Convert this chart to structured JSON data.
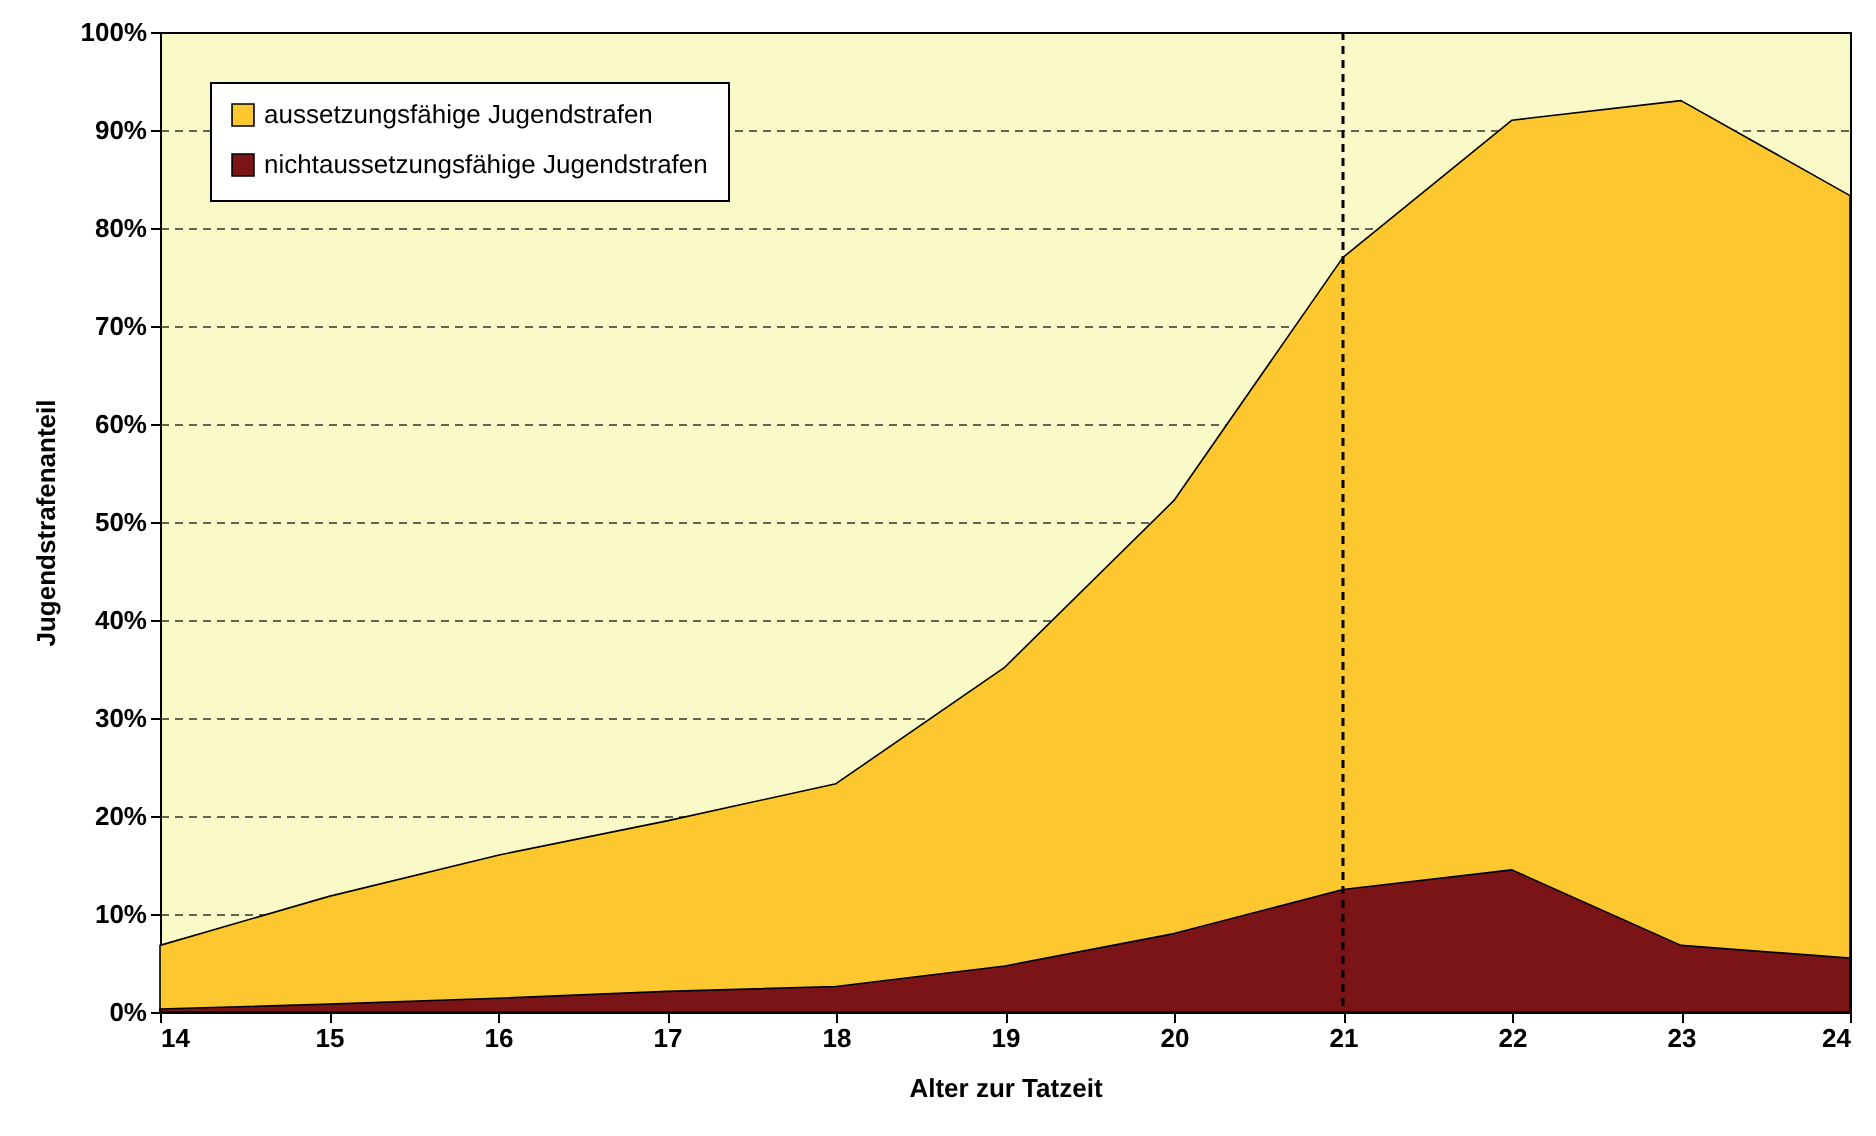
{
  "chart_data": {
    "type": "area",
    "xlabel": "Alter zur Tatzeit",
    "ylabel": "Jugendstrafenanteil",
    "x": [
      14,
      15,
      16,
      17,
      18,
      19,
      20,
      21,
      22,
      23,
      24
    ],
    "series": [
      {
        "name": "aussetzungsfähige Jugendstrafen",
        "color": "#fdc82f",
        "values": [
          6.8,
          11.8,
          16,
          19.5,
          23.3,
          35.2,
          52.2,
          77,
          91,
          93,
          83.3
        ]
      },
      {
        "name": "nichtaussetzungsfähige Jugendstrafen",
        "color": "#7b1416",
        "values": [
          0.3,
          0.8,
          1.4,
          2.1,
          2.6,
          4.7,
          8.0,
          12.5,
          14.5,
          6.8,
          5.5
        ]
      }
    ],
    "xlim": [
      14,
      24
    ],
    "xticks": [
      14,
      15,
      16,
      17,
      18,
      19,
      20,
      21,
      22,
      23,
      24
    ],
    "ylim": [
      0,
      100
    ],
    "yticks": [
      {
        "value": 0,
        "label": "0%"
      },
      {
        "value": 10,
        "label": "10%"
      },
      {
        "value": 20,
        "label": "20%"
      },
      {
        "value": 30,
        "label": "30%"
      },
      {
        "value": 40,
        "label": "40%"
      },
      {
        "value": 50,
        "label": "50%"
      },
      {
        "value": 60,
        "label": "60%"
      },
      {
        "value": 70,
        "label": "70%"
      },
      {
        "value": 80,
        "label": "80%"
      },
      {
        "value": 90,
        "label": "90%"
      },
      {
        "value": 100,
        "label": "100%"
      }
    ],
    "grid": "y",
    "legend": "top left",
    "ref_lines": [
      {
        "axis": "x",
        "value": 21,
        "line_style": "dashed"
      }
    ]
  }
}
